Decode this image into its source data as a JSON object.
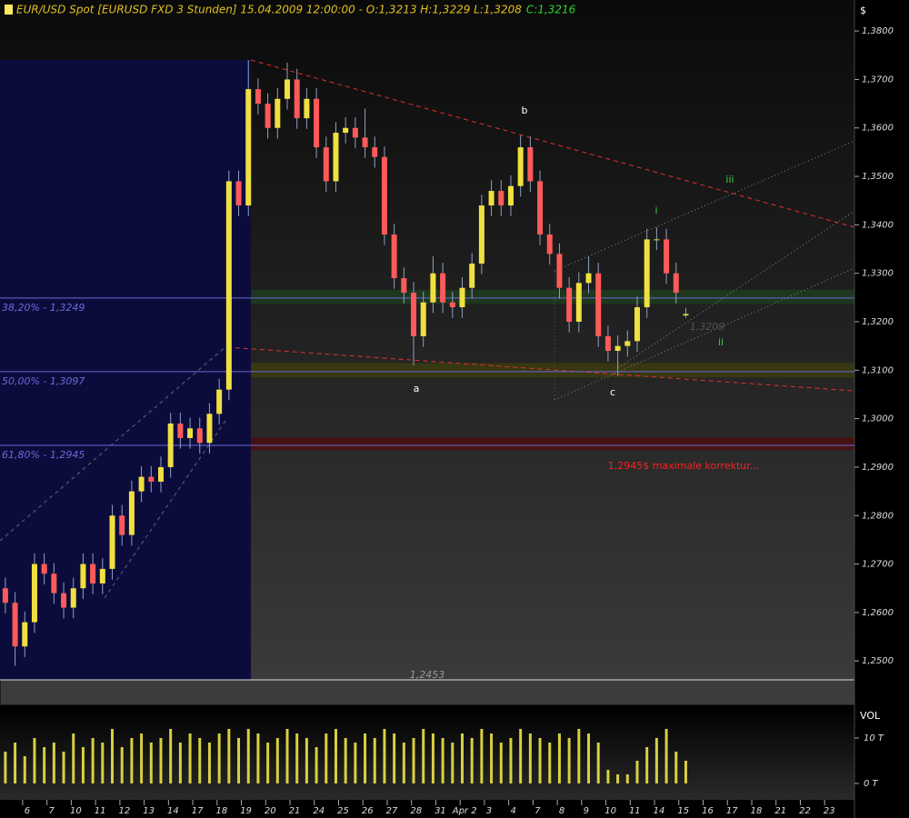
{
  "chart_data": {
    "type": "candlestick",
    "title": "EUR/USD Spot [EURUSD FXD  3 Stunden] 15.04.2009 12:00:00 - O:1,3213 H:1,3229 L:1,3208",
    "close_label": "C:1,3216",
    "currency_label": "$",
    "volume_label": "VOL",
    "x": [
      -0.9,
      -0.5,
      -0.1,
      0.3,
      0.7,
      1.1,
      1.5,
      1.9,
      2.3,
      2.7,
      3.1,
      3.5,
      3.9,
      4.3,
      4.7,
      5.1,
      5.5,
      5.9,
      6.3,
      6.7,
      7.1,
      7.5,
      7.9,
      8.3,
      8.7,
      9.1,
      9.5,
      9.9,
      10.3,
      10.7,
      11.1,
      11.5,
      11.9,
      12.3,
      12.7,
      13.1,
      13.5,
      13.9,
      14.3,
      14.7,
      15.1,
      15.5,
      15.9,
      16.3,
      16.7,
      17.1,
      17.5,
      17.9,
      18.3,
      18.7,
      19.1,
      19.5,
      19.9,
      20.3,
      20.7,
      21.1,
      21.5,
      21.9,
      22.3,
      22.7,
      23.1,
      23.5,
      23.9,
      24.3,
      24.7,
      25.1,
      25.5,
      25.9,
      26.3,
      26.7,
      27.1
    ],
    "open": [
      1.265,
      1.262,
      1.253,
      1.258,
      1.27,
      1.268,
      1.264,
      1.261,
      1.265,
      1.27,
      1.266,
      1.269,
      1.28,
      1.276,
      1.285,
      1.288,
      1.287,
      1.29,
      1.299,
      1.296,
      1.298,
      1.295,
      1.301,
      1.306,
      1.349,
      1.344,
      1.368,
      1.365,
      1.36,
      1.366,
      1.37,
      1.362,
      1.366,
      1.356,
      1.349,
      1.359,
      1.36,
      1.358,
      1.356,
      1.354,
      1.338,
      1.329,
      1.326,
      1.317,
      1.324,
      1.33,
      1.324,
      1.323,
      1.327,
      1.332,
      1.344,
      1.347,
      1.344,
      1.348,
      1.356,
      1.349,
      1.338,
      1.334,
      1.327,
      1.32,
      1.328,
      1.33,
      1.317,
      1.314,
      1.315,
      1.316,
      1.323,
      1.337,
      1.337,
      1.33,
      1.3213
    ],
    "high": [
      1.2672,
      1.2642,
      1.2602,
      1.2722,
      1.2722,
      1.2702,
      1.2662,
      1.2672,
      1.2722,
      1.2722,
      1.2712,
      1.2822,
      1.2822,
      1.2872,
      1.2902,
      1.2902,
      1.2922,
      1.3012,
      1.3012,
      1.3002,
      1.3002,
      1.3032,
      1.3082,
      1.3512,
      1.3512,
      1.374,
      1.3702,
      1.3672,
      1.3682,
      1.3735,
      1.3722,
      1.3682,
      1.3682,
      1.3582,
      1.3612,
      1.3622,
      1.3622,
      1.364,
      1.3582,
      1.3562,
      1.3402,
      1.3312,
      1.3282,
      1.3262,
      1.3335,
      1.3322,
      1.3262,
      1.3292,
      1.3342,
      1.3462,
      1.3492,
      1.3492,
      1.3502,
      1.3585,
      1.3582,
      1.3512,
      1.3402,
      1.3362,
      1.3292,
      1.3302,
      1.3335,
      1.3322,
      1.3192,
      1.3172,
      1.3182,
      1.3252,
      1.3392,
      1.3395,
      1.3392,
      1.3322,
      1.3229
    ],
    "low": [
      1.2598,
      1.249,
      1.2508,
      1.2558,
      1.2658,
      1.2618,
      1.2588,
      1.2588,
      1.2628,
      1.2638,
      1.2638,
      1.2668,
      1.2738,
      1.2738,
      1.2828,
      1.2848,
      1.2848,
      1.2878,
      1.2938,
      1.2938,
      1.2928,
      1.2928,
      1.2988,
      1.3038,
      1.3418,
      1.3418,
      1.3628,
      1.3578,
      1.3578,
      1.3638,
      1.3598,
      1.3598,
      1.3538,
      1.3468,
      1.3468,
      1.3568,
      1.3558,
      1.3538,
      1.3518,
      1.3358,
      1.3268,
      1.3238,
      1.311,
      1.3148,
      1.3218,
      1.3218,
      1.3208,
      1.3208,
      1.3248,
      1.3298,
      1.3418,
      1.3418,
      1.3418,
      1.3458,
      1.3468,
      1.3358,
      1.3318,
      1.3248,
      1.3178,
      1.3178,
      1.3258,
      1.3148,
      1.3118,
      1.3088,
      1.3128,
      1.3138,
      1.3208,
      1.3348,
      1.3278,
      1.3238,
      1.3208
    ],
    "close": [
      1.262,
      1.253,
      1.258,
      1.27,
      1.268,
      1.264,
      1.261,
      1.265,
      1.27,
      1.266,
      1.269,
      1.28,
      1.276,
      1.285,
      1.288,
      1.287,
      1.29,
      1.299,
      1.296,
      1.298,
      1.295,
      1.301,
      1.306,
      1.349,
      1.344,
      1.368,
      1.365,
      1.36,
      1.366,
      1.37,
      1.362,
      1.366,
      1.356,
      1.349,
      1.359,
      1.36,
      1.358,
      1.356,
      1.354,
      1.338,
      1.329,
      1.326,
      1.317,
      1.324,
      1.33,
      1.324,
      1.323,
      1.327,
      1.332,
      1.344,
      1.347,
      1.344,
      1.348,
      1.356,
      1.349,
      1.338,
      1.334,
      1.327,
      1.32,
      1.328,
      1.33,
      1.317,
      1.314,
      1.315,
      1.316,
      1.323,
      1.337,
      1.337,
      1.33,
      1.326,
      1.3216
    ],
    "volume": [
      7,
      9,
      6,
      10,
      8,
      9,
      7,
      11,
      8,
      10,
      9,
      12,
      8,
      10,
      11,
      9,
      10,
      12,
      9,
      11,
      10,
      9,
      11,
      12,
      10,
      12,
      11,
      9,
      10,
      12,
      11,
      10,
      8,
      11,
      12,
      10,
      9,
      11,
      10,
      12,
      11,
      9,
      10,
      12,
      11,
      10,
      9,
      11,
      10,
      12,
      11,
      9,
      10,
      12,
      11,
      10,
      9,
      11,
      10,
      12,
      11,
      9,
      3,
      2,
      2,
      5,
      8,
      10,
      12,
      7,
      5
    ],
    "up_color": "#f0e040",
    "down_color": "#ff5a5a",
    "wick_color": "#8fa0c0",
    "volume_color": "#d8d040",
    "xlim": [
      -1.12,
      34.04
    ],
    "xticks": [
      {
        "value": 0,
        "label": "6"
      },
      {
        "value": 1,
        "label": "7"
      },
      {
        "value": 2,
        "label": "10"
      },
      {
        "value": 3,
        "label": "11"
      },
      {
        "value": 4,
        "label": "12"
      },
      {
        "value": 5,
        "label": "13"
      },
      {
        "value": 6,
        "label": "14"
      },
      {
        "value": 7,
        "label": "17"
      },
      {
        "value": 8,
        "label": "18"
      },
      {
        "value": 9,
        "label": "19"
      },
      {
        "value": 10,
        "label": "20"
      },
      {
        "value": 11,
        "label": "21"
      },
      {
        "value": 12,
        "label": "24"
      },
      {
        "value": 13,
        "label": "25"
      },
      {
        "value": 14,
        "label": "26"
      },
      {
        "value": 15,
        "label": "27"
      },
      {
        "value": 16,
        "label": "28"
      },
      {
        "value": 17,
        "label": "31"
      },
      {
        "value": 18,
        "label": "Apr 2"
      },
      {
        "value": 19,
        "label": "3"
      },
      {
        "value": 20,
        "label": "4"
      },
      {
        "value": 21,
        "label": "7"
      },
      {
        "value": 22,
        "label": "8"
      },
      {
        "value": 23,
        "label": "9"
      },
      {
        "value": 24,
        "label": "10"
      },
      {
        "value": 25,
        "label": "11"
      },
      {
        "value": 26,
        "label": "14"
      },
      {
        "value": 27,
        "label": "15"
      },
      {
        "value": 28,
        "label": "16"
      },
      {
        "value": 29,
        "label": "17"
      },
      {
        "value": 30,
        "label": "18"
      },
      {
        "value": 31,
        "label": "21"
      },
      {
        "value": 32,
        "label": "22"
      },
      {
        "value": 33,
        "label": "23"
      }
    ],
    "ylim": [
      1.2461,
      1.3864
    ],
    "yticks": [
      {
        "value": 1.25,
        "label": "1,2500"
      },
      {
        "value": 1.26,
        "label": "1,2600"
      },
      {
        "value": 1.27,
        "label": "1,2700"
      },
      {
        "value": 1.28,
        "label": "1,2800"
      },
      {
        "value": 1.29,
        "label": "1,2900"
      },
      {
        "value": 1.3,
        "label": "1,3000"
      },
      {
        "value": 1.31,
        "label": "1,3100"
      },
      {
        "value": 1.32,
        "label": "1,3200"
      },
      {
        "value": 1.33,
        "label": "1,3300"
      },
      {
        "value": 1.34,
        "label": "1,3400"
      },
      {
        "value": 1.35,
        "label": "1,3500"
      },
      {
        "value": 1.36,
        "label": "1,3600"
      },
      {
        "value": 1.37,
        "label": "1,3700"
      },
      {
        "value": 1.38,
        "label": "1,3800"
      }
    ],
    "y2lim": [
      -2.6,
      17.4
    ],
    "y2ticks": [
      {
        "value": 0,
        "label": "0 T"
      },
      {
        "value": 10,
        "label": "10 T"
      }
    ],
    "fib_levels": [
      {
        "label": "38,20% - 1,3249",
        "value": 1.3249
      },
      {
        "label": "50,00% - 1,3097",
        "value": 1.3097
      },
      {
        "label": "61,80% - 1,2945",
        "value": 1.2945
      }
    ],
    "fib_color": "#6a6ad8",
    "zones": [
      {
        "from": 1.3237,
        "to": 1.3266,
        "color": "#1e3a1e"
      },
      {
        "from": 1.3085,
        "to": 1.3115,
        "color": "#3a3a10"
      },
      {
        "from": 1.2935,
        "to": 1.2961,
        "color": "#4a1010"
      }
    ],
    "wave_labels": [
      "a",
      "b",
      "c",
      "i",
      "ii",
      "iii"
    ],
    "note": "1,2945$ maximale korrektur...",
    "price_marks": [
      "1,3209",
      "1,2453"
    ]
  }
}
